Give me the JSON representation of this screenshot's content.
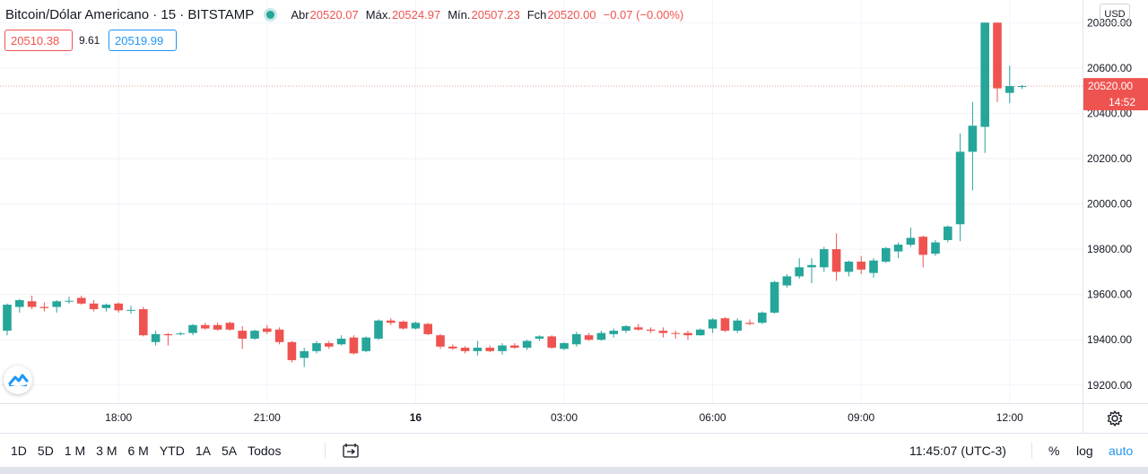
{
  "header": {
    "symbol": "Bitcoin/Dólar Americano · 15 · BITSTAMP",
    "open_label": "Abr",
    "open_value": "20520.07",
    "high_label": "Máx.",
    "high_value": "20524.97",
    "low_label": "Mín.",
    "low_value": "20507.23",
    "close_label": "Fch",
    "close_value": "20520.00",
    "change": "−0.07 (−0.00%)",
    "bid": "20510.38",
    "spread": "9.61",
    "ask": "20519.99",
    "currency": "USD"
  },
  "colors": {
    "up": "#26a69a",
    "down": "#ef5350",
    "grid": "#f0f3fa",
    "text": "#131722",
    "accent": "#2196f3"
  },
  "chart_data": {
    "type": "candlestick",
    "title": "Bitcoin/Dólar Americano · 15 · BITSTAMP",
    "interval_minutes": 15,
    "start_time": "15:45",
    "ylim": [
      19120,
      20900
    ],
    "y_ticks": [
      "19200.00",
      "19400.00",
      "19600.00",
      "19800.00",
      "20000.00",
      "20200.00",
      "20400.00",
      "20600.00",
      "20800.00"
    ],
    "x_ticks": [
      {
        "label": "18:00",
        "time": "18:00"
      },
      {
        "label": "21:00",
        "time": "21:00"
      },
      {
        "label": "16",
        "time": "00:00"
      },
      {
        "label": "03:00",
        "time": "03:00"
      },
      {
        "label": "06:00",
        "time": "06:00"
      },
      {
        "label": "09:00",
        "time": "09:00"
      },
      {
        "label": "12:00",
        "time": "12:00"
      }
    ],
    "last_price": "20520.00",
    "countdown": "14:52",
    "grid": true,
    "candles": [
      {
        "o": 19440,
        "h": 19560,
        "l": 19420,
        "c": 19555
      },
      {
        "o": 19545,
        "h": 19580,
        "l": 19520,
        "c": 19575
      },
      {
        "o": 19570,
        "h": 19595,
        "l": 19535,
        "c": 19545
      },
      {
        "o": 19545,
        "h": 19565,
        "l": 19525,
        "c": 19540
      },
      {
        "o": 19545,
        "h": 19575,
        "l": 19520,
        "c": 19570
      },
      {
        "o": 19570,
        "h": 19590,
        "l": 19560,
        "c": 19572
      },
      {
        "o": 19585,
        "h": 19595,
        "l": 19555,
        "c": 19560
      },
      {
        "o": 19560,
        "h": 19575,
        "l": 19525,
        "c": 19535
      },
      {
        "o": 19540,
        "h": 19560,
        "l": 19525,
        "c": 19555
      },
      {
        "o": 19560,
        "h": 19565,
        "l": 19520,
        "c": 19530
      },
      {
        "o": 19530,
        "h": 19550,
        "l": 19515,
        "c": 19532
      },
      {
        "o": 19535,
        "h": 19545,
        "l": 19415,
        "c": 19420
      },
      {
        "o": 19390,
        "h": 19440,
        "l": 19375,
        "c": 19425
      },
      {
        "o": 19425,
        "h": 19430,
        "l": 19375,
        "c": 19420
      },
      {
        "o": 19425,
        "h": 19435,
        "l": 19420,
        "c": 19428
      },
      {
        "o": 19430,
        "h": 19470,
        "l": 19420,
        "c": 19465
      },
      {
        "o": 19465,
        "h": 19475,
        "l": 19445,
        "c": 19450
      },
      {
        "o": 19465,
        "h": 19475,
        "l": 19440,
        "c": 19445
      },
      {
        "o": 19475,
        "h": 19480,
        "l": 19440,
        "c": 19445
      },
      {
        "o": 19440,
        "h": 19460,
        "l": 19360,
        "c": 19405
      },
      {
        "o": 19405,
        "h": 19445,
        "l": 19400,
        "c": 19440
      },
      {
        "o": 19450,
        "h": 19465,
        "l": 19425,
        "c": 19435
      },
      {
        "o": 19445,
        "h": 19455,
        "l": 19380,
        "c": 19390
      },
      {
        "o": 19390,
        "h": 19395,
        "l": 19300,
        "c": 19310
      },
      {
        "o": 19320,
        "h": 19365,
        "l": 19280,
        "c": 19350
      },
      {
        "o": 19350,
        "h": 19395,
        "l": 19340,
        "c": 19385
      },
      {
        "o": 19385,
        "h": 19395,
        "l": 19360,
        "c": 19370
      },
      {
        "o": 19380,
        "h": 19420,
        "l": 19375,
        "c": 19405
      },
      {
        "o": 19410,
        "h": 19420,
        "l": 19335,
        "c": 19340
      },
      {
        "o": 19350,
        "h": 19415,
        "l": 19345,
        "c": 19410
      },
      {
        "o": 19405,
        "h": 19490,
        "l": 19400,
        "c": 19485
      },
      {
        "o": 19485,
        "h": 19495,
        "l": 19465,
        "c": 19475
      },
      {
        "o": 19480,
        "h": 19485,
        "l": 19445,
        "c": 19450
      },
      {
        "o": 19450,
        "h": 19480,
        "l": 19445,
        "c": 19475
      },
      {
        "o": 19470,
        "h": 19475,
        "l": 19420,
        "c": 19425
      },
      {
        "o": 19420,
        "h": 19425,
        "l": 19360,
        "c": 19370
      },
      {
        "o": 19370,
        "h": 19380,
        "l": 19355,
        "c": 19362
      },
      {
        "o": 19365,
        "h": 19372,
        "l": 19340,
        "c": 19350
      },
      {
        "o": 19350,
        "h": 19395,
        "l": 19330,
        "c": 19365
      },
      {
        "o": 19365,
        "h": 19375,
        "l": 19345,
        "c": 19350
      },
      {
        "o": 19350,
        "h": 19385,
        "l": 19335,
        "c": 19375
      },
      {
        "o": 19375,
        "h": 19385,
        "l": 19360,
        "c": 19365
      },
      {
        "o": 19365,
        "h": 19400,
        "l": 19355,
        "c": 19395
      },
      {
        "o": 19405,
        "h": 19420,
        "l": 19395,
        "c": 19415
      },
      {
        "o": 19415,
        "h": 19420,
        "l": 19360,
        "c": 19365
      },
      {
        "o": 19360,
        "h": 19390,
        "l": 19355,
        "c": 19385
      },
      {
        "o": 19380,
        "h": 19435,
        "l": 19370,
        "c": 19425
      },
      {
        "o": 19420,
        "h": 19430,
        "l": 19395,
        "c": 19400
      },
      {
        "o": 19400,
        "h": 19440,
        "l": 19395,
        "c": 19430
      },
      {
        "o": 19425,
        "h": 19450,
        "l": 19410,
        "c": 19440
      },
      {
        "o": 19440,
        "h": 19465,
        "l": 19430,
        "c": 19460
      },
      {
        "o": 19455,
        "h": 19470,
        "l": 19440,
        "c": 19445
      },
      {
        "o": 19445,
        "h": 19455,
        "l": 19430,
        "c": 19440
      },
      {
        "o": 19440,
        "h": 19455,
        "l": 19410,
        "c": 19430
      },
      {
        "o": 19430,
        "h": 19440,
        "l": 19405,
        "c": 19428
      },
      {
        "o": 19430,
        "h": 19440,
        "l": 19400,
        "c": 19420
      },
      {
        "o": 19420,
        "h": 19450,
        "l": 19418,
        "c": 19445
      },
      {
        "o": 19450,
        "h": 19495,
        "l": 19430,
        "c": 19490
      },
      {
        "o": 19495,
        "h": 19500,
        "l": 19435,
        "c": 19440
      },
      {
        "o": 19440,
        "h": 19495,
        "l": 19430,
        "c": 19485
      },
      {
        "o": 19475,
        "h": 19490,
        "l": 19465,
        "c": 19470
      },
      {
        "o": 19475,
        "h": 19525,
        "l": 19470,
        "c": 19520
      },
      {
        "o": 19520,
        "h": 19660,
        "l": 19515,
        "c": 19655
      },
      {
        "o": 19640,
        "h": 19690,
        "l": 19630,
        "c": 19680
      },
      {
        "o": 19680,
        "h": 19760,
        "l": 19670,
        "c": 19720
      },
      {
        "o": 19720,
        "h": 19760,
        "l": 19650,
        "c": 19730
      },
      {
        "o": 19720,
        "h": 19810,
        "l": 19700,
        "c": 19800
      },
      {
        "o": 19800,
        "h": 19870,
        "l": 19660,
        "c": 19700
      },
      {
        "o": 19700,
        "h": 19750,
        "l": 19680,
        "c": 19745
      },
      {
        "o": 19745,
        "h": 19770,
        "l": 19690,
        "c": 19710
      },
      {
        "o": 19695,
        "h": 19760,
        "l": 19675,
        "c": 19750
      },
      {
        "o": 19745,
        "h": 19810,
        "l": 19740,
        "c": 19805
      },
      {
        "o": 19790,
        "h": 19830,
        "l": 19760,
        "c": 19820
      },
      {
        "o": 19820,
        "h": 19895,
        "l": 19810,
        "c": 19850
      },
      {
        "o": 19855,
        "h": 19860,
        "l": 19720,
        "c": 19775
      },
      {
        "o": 19780,
        "h": 19840,
        "l": 19770,
        "c": 19830
      },
      {
        "o": 19840,
        "h": 19905,
        "l": 19830,
        "c": 19900
      },
      {
        "o": 19910,
        "h": 20310,
        "l": 19835,
        "c": 20230
      },
      {
        "o": 20230,
        "h": 20450,
        "l": 20060,
        "c": 20345
      },
      {
        "o": 20340,
        "h": 20800,
        "l": 20225,
        "c": 20800
      },
      {
        "o": 20800,
        "h": 20800,
        "l": 20450,
        "c": 20510
      },
      {
        "o": 20490,
        "h": 20610,
        "l": 20445,
        "c": 20520
      },
      {
        "o": 20520,
        "h": 20525,
        "l": 20507,
        "c": 20520
      }
    ]
  },
  "toolbar": {
    "ranges": [
      "1D",
      "5D",
      "1 M",
      "3 M",
      "6 M",
      "YTD",
      "1A",
      "5A",
      "Todos"
    ],
    "time": "11:45:07 (UTC-3)",
    "percent": "%",
    "log": "log",
    "auto": "auto"
  }
}
